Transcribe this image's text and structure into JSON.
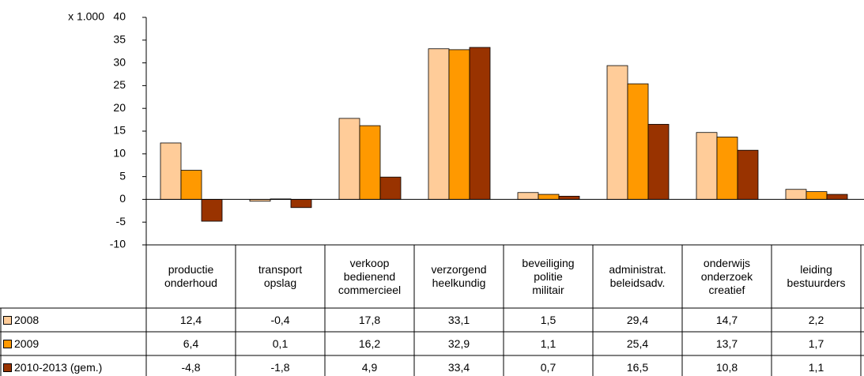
{
  "chart_data": {
    "type": "bar",
    "y_unit_label": "x 1.000",
    "categories": [
      "productie\nonderhoud",
      "transport\nopslag",
      "verkoop\nbedienend\ncommercieel",
      "verzorgend\nheelkundig",
      "beveiliging\npolitie\nmilitair",
      "administrat.\nbeleidsadv.",
      "onderwijs\nonderzoek\ncreatief",
      "leiding\nbestuurders"
    ],
    "series": [
      {
        "name": "2008",
        "color": "#FFCC99",
        "values": [
          12.4,
          -0.4,
          17.8,
          33.1,
          1.5,
          29.4,
          14.7,
          2.2
        ],
        "value_labels": [
          "12,4",
          "-0,4",
          "17,8",
          "33,1",
          "1,5",
          "29,4",
          "14,7",
          "2,2"
        ]
      },
      {
        "name": "2009",
        "color": "#FF9900",
        "values": [
          6.4,
          0.1,
          16.2,
          32.9,
          1.1,
          25.4,
          13.7,
          1.7
        ],
        "value_labels": [
          "6,4",
          "0,1",
          "16,2",
          "32,9",
          "1,1",
          "25,4",
          "13,7",
          "1,7"
        ]
      },
      {
        "name": "2010-2013 (gem.)",
        "color": "#993300",
        "values": [
          -4.8,
          -1.8,
          4.9,
          33.4,
          0.7,
          16.5,
          10.8,
          1.1
        ],
        "value_labels": [
          "-4,8",
          "-1,8",
          "4,9",
          "33,4",
          "0,7",
          "16,5",
          "10,8",
          "1,1"
        ]
      }
    ],
    "ylim": [
      -10,
      40
    ],
    "yticks": [
      -10,
      -5,
      0,
      5,
      10,
      15,
      20,
      25,
      30,
      35,
      40
    ]
  }
}
